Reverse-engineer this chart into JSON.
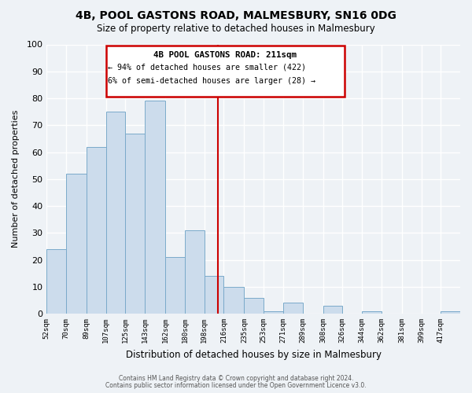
{
  "title": "4B, POOL GASTONS ROAD, MALMESBURY, SN16 0DG",
  "subtitle": "Size of property relative to detached houses in Malmesbury",
  "xlabel": "Distribution of detached houses by size in Malmesbury",
  "ylabel": "Number of detached properties",
  "bin_labels": [
    "52sqm",
    "70sqm",
    "89sqm",
    "107sqm",
    "125sqm",
    "143sqm",
    "162sqm",
    "180sqm",
    "198sqm",
    "216sqm",
    "235sqm",
    "253sqm",
    "271sqm",
    "289sqm",
    "308sqm",
    "326sqm",
    "344sqm",
    "362sqm",
    "381sqm",
    "399sqm",
    "417sqm"
  ],
  "bin_edges": [
    52,
    70,
    89,
    107,
    125,
    143,
    162,
    180,
    198,
    216,
    235,
    253,
    271,
    289,
    308,
    326,
    344,
    362,
    381,
    399,
    417
  ],
  "bar_heights": [
    24,
    52,
    62,
    75,
    67,
    79,
    21,
    31,
    14,
    10,
    6,
    1,
    4,
    0,
    3,
    0,
    1,
    0,
    0,
    0,
    1
  ],
  "bar_color": "#ccdcec",
  "bar_edge_color": "#7aaaca",
  "property_line_x": 211,
  "property_line_color": "#cc0000",
  "annotation_title": "4B POOL GASTONS ROAD: 211sqm",
  "annotation_line1": "← 94% of detached houses are smaller (422)",
  "annotation_line2": "6% of semi-detached houses are larger (28) →",
  "annotation_box_color": "#cc0000",
  "ylim": [
    0,
    100
  ],
  "yticks": [
    0,
    10,
    20,
    30,
    40,
    50,
    60,
    70,
    80,
    90,
    100
  ],
  "footer1": "Contains HM Land Registry data © Crown copyright and database right 2024.",
  "footer2": "Contains public sector information licensed under the Open Government Licence v3.0.",
  "bg_color": "#eef2f6",
  "plot_bg_color": "#eef2f6",
  "grid_color": "#ffffff"
}
